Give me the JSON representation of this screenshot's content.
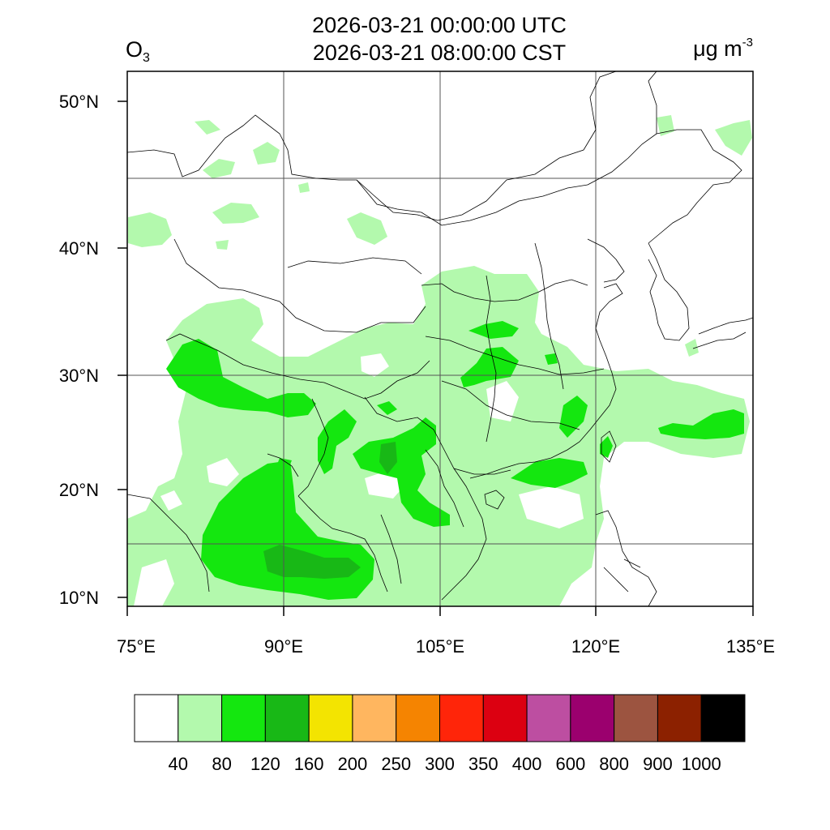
{
  "title": {
    "line1": "2026-03-21 00:00:00 UTC",
    "line2": "2026-03-21 08:00:00 CST"
  },
  "species": {
    "base": "O",
    "subscript": "3"
  },
  "units": {
    "base": "μg m",
    "superscript": "-3"
  },
  "map": {
    "lon_range": [
      75,
      135
    ],
    "lat_range": [
      9.0,
      52.5
    ],
    "lon_ticks": [
      "75°E",
      "90°E",
      "105°E",
      "120°E",
      "135°E"
    ],
    "lat_ticks": [
      "10°N",
      "20°N",
      "30°N",
      "40°N",
      "50°N"
    ],
    "gridlines": true
  },
  "colorbar": {
    "levels": [
      "40",
      "80",
      "120",
      "160",
      "200",
      "250",
      "300",
      "350",
      "400",
      "600",
      "800",
      "900",
      "1000"
    ],
    "colors": [
      "#ffffff",
      "#b3f9ad",
      "#14e70f",
      "#18b816",
      "#f3e401",
      "#ffb65f",
      "#f58401",
      "#ff2509",
      "#dc0011",
      "#bd4ea1",
      "#9b006e",
      "#9c5440",
      "#8c2100",
      "#000000"
    ]
  }
}
